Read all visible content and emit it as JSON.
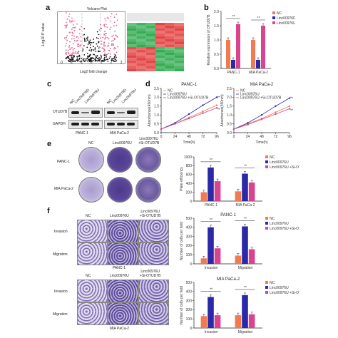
{
  "labels": {
    "a": "a",
    "b": "b",
    "c": "c",
    "d": "d",
    "e": "e",
    "f": "f"
  },
  "panel_a": {
    "title": "Volcano Plot",
    "xlabel": "Log2 fold change",
    "ylabel": "-Log10 P value",
    "xticks": [
      "-3",
      "-2",
      "-1",
      "0",
      "1",
      "2",
      "3"
    ],
    "colors": {
      "up": "#e8608a",
      "down": "#e8608a",
      "ns": "#111111",
      "heat_high": "#e23b3b",
      "heat_low": "#2aa84a"
    }
  },
  "samples": [
    "NC",
    "Linc00976D",
    "Linc00976U"
  ],
  "samples_e": [
    "NC",
    "Linc00976U",
    "Linc00976U\n+Si-OTUD7B"
  ],
  "cell_lines": [
    "PANC-1",
    "MIA PaCa-2"
  ],
  "colors": {
    "nc": "#f07a52",
    "linc_d": "#2a2aa8",
    "linc_u": "#d8458e",
    "linc_u_si": "#d8458e"
  },
  "chart_data": [
    {
      "id": "b",
      "type": "bar",
      "ylabel": "Relative expression of OTUD7B",
      "ylim": [
        0,
        2.0
      ],
      "yticks": [
        "0.0",
        "0.5",
        "1.0",
        "1.5",
        "2.0"
      ],
      "categories": [
        "PANC-1",
        "MIA PaCa-2"
      ],
      "legend": [
        "NC",
        "Linc00976D",
        "Linc00976U"
      ],
      "series": [
        {
          "name": "NC",
          "values": [
            1.0,
            1.0
          ]
        },
        {
          "name": "Linc00976D",
          "values": [
            0.3,
            0.3
          ]
        },
        {
          "name": "Linc00976U",
          "values": [
            1.55,
            1.5
          ]
        }
      ],
      "significance": [
        "**",
        "**",
        "**",
        "**"
      ]
    },
    {
      "id": "d1",
      "type": "line",
      "title": "PANC-1",
      "xlabel": "Time(h)",
      "ylabel": "Absorbance(450nm)",
      "x": [
        0,
        24,
        48,
        72,
        96
      ],
      "ylim": [
        0,
        2.5
      ],
      "yticks": [
        "0.0",
        "0.5",
        "1.0",
        "1.5",
        "2.0",
        "2.5"
      ],
      "legend": [
        "NC",
        "Linc00976U",
        "Linc00976U +Si-OTUD7B"
      ],
      "series": [
        {
          "name": "NC",
          "values": [
            0.2,
            0.5,
            0.85,
            1.2,
            1.55
          ]
        },
        {
          "name": "Linc00976U",
          "values": [
            0.2,
            0.55,
            1.05,
            1.55,
            2.0
          ]
        },
        {
          "name": "Linc00976U +Si-OTUD7B",
          "values": [
            0.2,
            0.5,
            0.8,
            1.1,
            1.4
          ]
        }
      ],
      "significance": [
        "**",
        "**"
      ]
    },
    {
      "id": "d2",
      "type": "line",
      "title": "MIA PaCa-2",
      "xlabel": "Time(h)",
      "ylabel": "Absorbance(450nm)",
      "x": [
        0,
        24,
        48,
        72,
        96
      ],
      "ylim": [
        0,
        2.5
      ],
      "yticks": [
        "0.0",
        "0.5",
        "1.0",
        "1.5",
        "2.0",
        "2.5"
      ],
      "legend": [
        "NC",
        "Linc00976U",
        "Linc00976U +Si-OTUD7B"
      ],
      "series": [
        {
          "name": "NC",
          "values": [
            0.2,
            0.5,
            0.8,
            1.15,
            1.5
          ]
        },
        {
          "name": "Linc00976U",
          "values": [
            0.2,
            0.55,
            1.0,
            1.5,
            1.95
          ]
        },
        {
          "name": "Linc00976U +Si-OTUD7B",
          "values": [
            0.2,
            0.45,
            0.75,
            1.05,
            1.35
          ]
        }
      ],
      "significance": [
        "**",
        "**"
      ]
    },
    {
      "id": "e",
      "type": "bar",
      "ylabel": "Plate efficiency",
      "ylim": [
        0,
        1000
      ],
      "yticks": [
        "0",
        "200",
        "400",
        "600",
        "800",
        "1000"
      ],
      "categories": [
        "PANC-1",
        "MIA PaCa-2"
      ],
      "legend": [
        "NC",
        "Linc00976U",
        "Linc00976U +Si-OTUD7B"
      ],
      "series": [
        {
          "name": "NC",
          "values": [
            200,
            220
          ]
        },
        {
          "name": "Linc00976U",
          "values": [
            760,
            620
          ]
        },
        {
          "name": "Linc00976U +Si-OTUD7B",
          "values": [
            450,
            420
          ]
        }
      ],
      "significance": [
        "**",
        "**",
        "**",
        "**"
      ]
    },
    {
      "id": "f1",
      "type": "bar",
      "title": "PANC-1",
      "ylabel": "Number of cells per field",
      "ylim": [
        0,
        500
      ],
      "yticks": [
        "0",
        "100",
        "200",
        "300",
        "400",
        "500"
      ],
      "categories": [
        "Invasion",
        "Migration"
      ],
      "legend": [
        "NC",
        "Linc00976U",
        "Linc00976U +Si-OTUD7B"
      ],
      "series": [
        {
          "name": "NC",
          "values": [
            60,
            90
          ]
        },
        {
          "name": "Linc00976U",
          "values": [
            400,
            410
          ]
        },
        {
          "name": "Linc00976U +Si-OTUD7B",
          "values": [
            170,
            160
          ]
        }
      ],
      "significance": [
        "**",
        "**",
        "**",
        "**"
      ]
    },
    {
      "id": "f2",
      "type": "bar",
      "title": "MIA PaCa-2",
      "ylabel": "Number of cells per field",
      "ylim": [
        0,
        500
      ],
      "yticks": [
        "0",
        "100",
        "200",
        "300",
        "400",
        "500"
      ],
      "categories": [
        "Invasion",
        "Migration"
      ],
      "legend": [
        "NC",
        "Linc00976U",
        "Linc00976U +Si-OTUD7B"
      ],
      "series": [
        {
          "name": "NC",
          "values": [
            130,
            140
          ]
        },
        {
          "name": "Linc00976U",
          "values": [
            340,
            360
          ]
        },
        {
          "name": "Linc00976U +Si-OTUD7B",
          "values": [
            140,
            150
          ]
        }
      ],
      "significance": [
        "**",
        "**",
        "**",
        "**"
      ]
    }
  ],
  "panel_c": {
    "rows": [
      "OTUD7B",
      "GAPDH"
    ]
  },
  "panel_e": {
    "rows": [
      "PANC-1",
      "MIA PaCa-2"
    ]
  },
  "panel_f": {
    "rows": [
      "Invasion",
      "Migration"
    ],
    "cols": [
      "NC",
      "Linc00976U",
      "Linc00976U\n+Si-OTUD7B"
    ],
    "groups": [
      "PANC-1",
      "MIA PaCa-2"
    ]
  }
}
